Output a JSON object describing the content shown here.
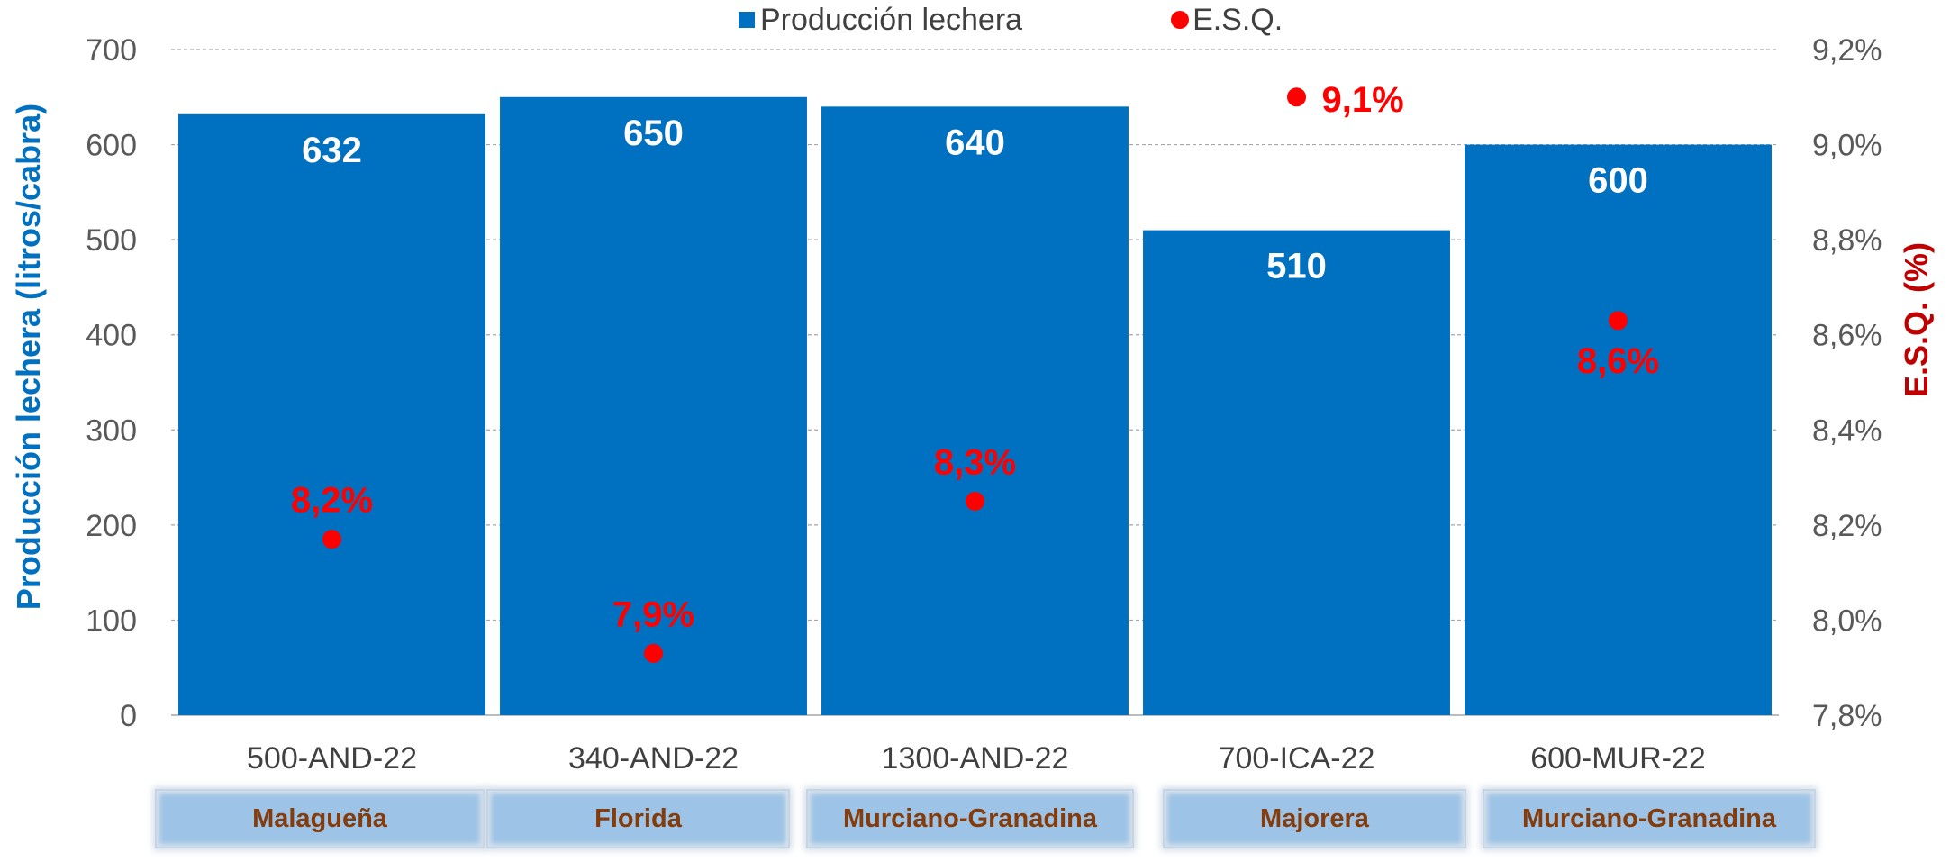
{
  "legend": {
    "bar_label": "Producción lechera",
    "dot_label": "E.S.Q."
  },
  "chart_data": {
    "type": "bar",
    "categories": [
      "500-AND-22",
      "340-AND-22",
      "1300-AND-22",
      "700-ICA-22",
      "600-MUR-22"
    ],
    "groups": [
      "Malagueña",
      "Florida",
      "Murciano-Granadina",
      "Majorera",
      "Murciano-Granadina"
    ],
    "series": [
      {
        "name": "Producción lechera",
        "type": "bar",
        "axis": "left",
        "values": [
          632,
          650,
          640,
          510,
          600
        ],
        "labels": [
          "632",
          "650",
          "640",
          "510",
          "600"
        ],
        "color": "#0070C0"
      },
      {
        "name": "E.S.Q.",
        "type": "scatter",
        "axis": "right",
        "values": [
          8.17,
          7.93,
          8.25,
          9.1,
          8.63
        ],
        "labels": [
          "8,2%",
          "7,9%",
          "8,3%",
          "9,1%",
          "8,6%"
        ],
        "color": "#FF0000"
      }
    ],
    "ylabel": "Producción lechera (litros/cabra)",
    "y2label": "E.S.Q. (%)",
    "ylim": [
      0,
      700
    ],
    "y2lim": [
      7.8,
      9.2
    ],
    "yticks": [
      "0",
      "100",
      "200",
      "300",
      "400",
      "500",
      "600",
      "700"
    ],
    "y2ticks": [
      "7,8%",
      "8,0%",
      "8,2%",
      "8,4%",
      "8,6%",
      "8,8%",
      "9,0%",
      "9,2%"
    ],
    "grid": true,
    "legend_position": "top"
  },
  "colors": {
    "bar": "#0070C0",
    "dot": "#FF0000",
    "right_axis_title": "#C00000",
    "breed_text": "#843C0C",
    "breed_box": "#9DC3E6"
  }
}
